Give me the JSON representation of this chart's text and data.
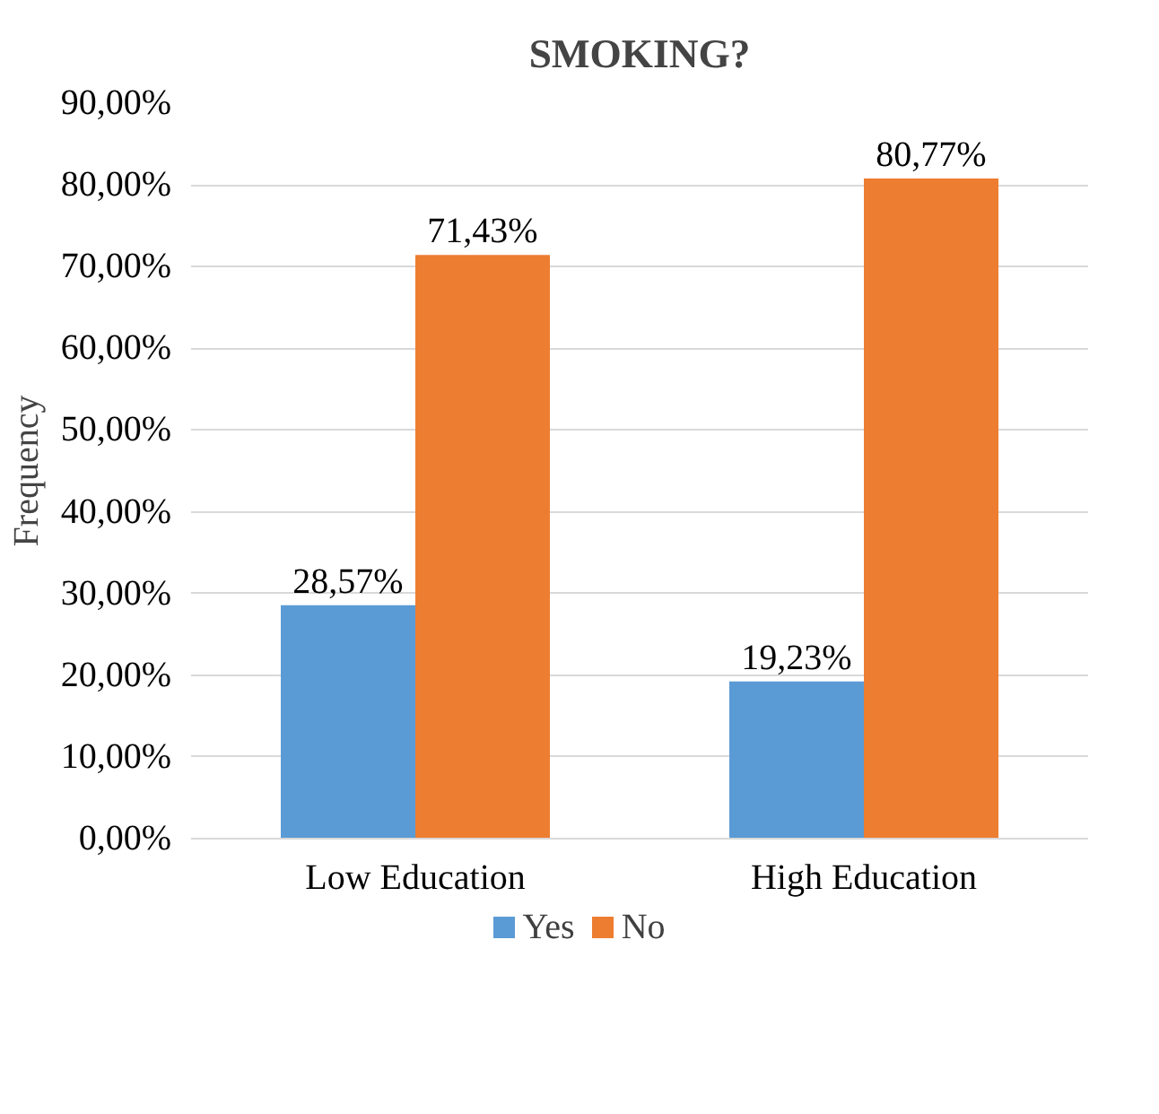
{
  "chart_data": {
    "type": "bar",
    "title": "SMOKING?",
    "ylabel": "Frequency",
    "categories": [
      "Low Education",
      "High Education"
    ],
    "series": [
      {
        "name": "Yes",
        "color": "#5b9bd5",
        "values": [
          28.57,
          19.23
        ],
        "value_labels": [
          "28,57%",
          "19,23%"
        ]
      },
      {
        "name": "No",
        "color": "#ed7d31",
        "values": [
          71.43,
          80.77
        ],
        "value_labels": [
          "71,43%",
          "80,77%"
        ]
      }
    ],
    "ylim": [
      0,
      90
    ],
    "yticks": [
      {
        "value": 0,
        "label": "0,00%"
      },
      {
        "value": 10,
        "label": "10,00%"
      },
      {
        "value": 20,
        "label": "20,00%"
      },
      {
        "value": 30,
        "label": "30,00%"
      },
      {
        "value": 40,
        "label": "40,00%"
      },
      {
        "value": 50,
        "label": "50,00%"
      },
      {
        "value": 60,
        "label": "60,00%"
      },
      {
        "value": 70,
        "label": "70,00%"
      },
      {
        "value": 80,
        "label": "80,00%"
      },
      {
        "value": 90,
        "label": "90,00%"
      }
    ],
    "grid": "y",
    "legend": "bottom"
  }
}
